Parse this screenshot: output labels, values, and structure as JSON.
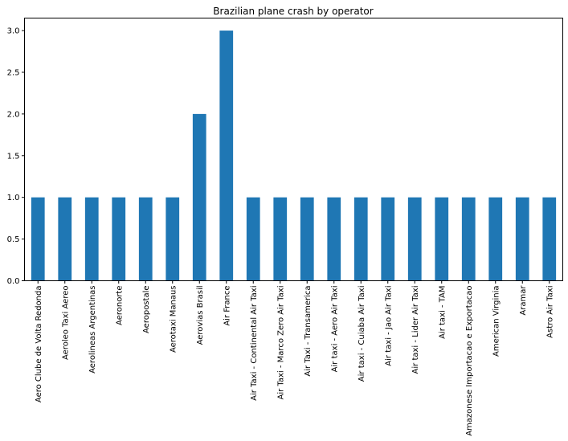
{
  "chart_data": {
    "type": "bar",
    "title": "Brazilian plane crash by operator",
    "xlabel": "",
    "ylabel": "",
    "ylim": [
      0,
      3.15
    ],
    "yticks": [
      0.0,
      0.5,
      1.0,
      1.5,
      2.0,
      2.5,
      3.0
    ],
    "ytick_labels": [
      "0.0",
      "0.5",
      "1.0",
      "1.5",
      "2.0",
      "2.5",
      "3.0"
    ],
    "grid": false,
    "legend": "none",
    "bar_color": "#1f77b4",
    "categories": [
      "Aero Clube de Volta Redonda",
      "Aeroleo Taxi Aereo",
      "Aerolineas Argentinas",
      "Aeronorte",
      "Aeropostale",
      "Aerotaxi Manaus",
      "Aerovias Brasil",
      "Air France",
      "Air Taxi - Continental Air Taxi",
      "Air Taxi - Marco Zero Air Taxi",
      "Air Taxi - Transamerica",
      "Air taxi - Aero Air Taxi",
      "Air taxi - Cuiaba Air Taxi",
      "Air taxi - Jao Air Taxi",
      "Air taxi - Lider Air Taxi",
      "Air taxi - TAM",
      "Amazonese Importacao e Exportacao",
      "American Virginia",
      "Aramar",
      "Astro Air Taxi"
    ],
    "values": [
      1,
      1,
      1,
      1,
      1,
      1,
      2,
      3,
      1,
      1,
      1,
      1,
      1,
      1,
      1,
      1,
      1,
      1,
      1,
      1
    ]
  }
}
